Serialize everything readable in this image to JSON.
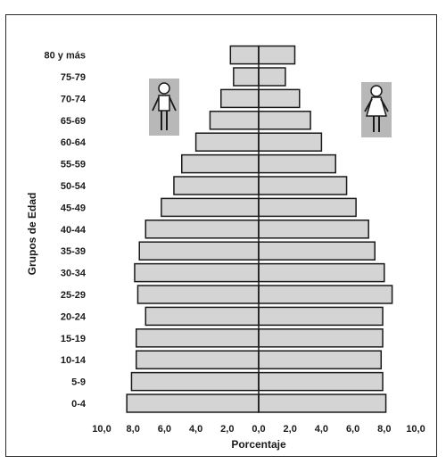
{
  "chart_data": {
    "type": "bar",
    "subtype": "population-pyramid",
    "title": "",
    "xlabel": "Porcentaje",
    "ylabel": "Grupos de Edad",
    "categories": [
      "0-4",
      "5-9",
      "10-14",
      "15-19",
      "20-24",
      "25-29",
      "30-34",
      "35-39",
      "40-44",
      "45-49",
      "50-54",
      "55-59",
      "60-64",
      "65-69",
      "70-74",
      "75-79",
      "80 y más"
    ],
    "series": [
      {
        "values": [
          8.4,
          8.1,
          7.8,
          7.8,
          7.2,
          7.7,
          7.9,
          7.6,
          7.2,
          6.2,
          5.4,
          4.9,
          4.0,
          3.1,
          2.4,
          1.6,
          1.8
        ]
      },
      {
        "values": [
          8.1,
          7.9,
          7.8,
          7.9,
          7.9,
          8.5,
          8.0,
          7.4,
          7.0,
          6.2,
          5.6,
          4.9,
          4.0,
          3.3,
          2.6,
          1.7,
          2.3
        ]
      }
    ],
    "xlim": [
      -10,
      10
    ],
    "xticks": [
      "10,0",
      "8,0",
      "6,0",
      "4,0",
      "2,0",
      "0,0",
      "2,0",
      "4,0",
      "6,0",
      "8,0",
      "10,0"
    ],
    "grid": false,
    "legend": "male icon left, female icon right",
    "colors": {
      "bar": "#d4d4d4",
      "bar_stroke": "#1a1a1a",
      "icon_bg": "#b8b8b8"
    }
  },
  "icons": {
    "left": "male-figure-icon",
    "right": "female-figure-icon"
  }
}
